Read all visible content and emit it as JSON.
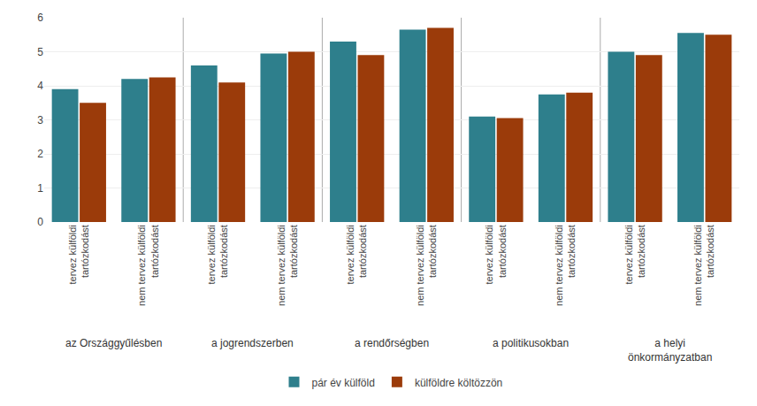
{
  "chart_data": {
    "type": "bar",
    "categories": [
      [
        "az Országgyűlésben",
        "tervez külföldi\ntartózkodást"
      ],
      [
        "az Országgyűlésben",
        "nem tervez külföldi\ntartózkodást"
      ],
      [
        "a jogrendszerben",
        "tervez külföldi\ntartózkodást"
      ],
      [
        "a jogrendszerben",
        "nem tervez külföldi\ntartózkodást"
      ],
      [
        "a rendőrségben",
        "tervez külföldi\ntartózkodást"
      ],
      [
        "a rendőrségben",
        "nem tervez külföldi\ntartózkodást"
      ],
      [
        "a politikusokban",
        "tervez külföldi\ntartózkodást"
      ],
      [
        "a politikusokban",
        "nem tervez külföldi\ntartózkodást"
      ],
      [
        "a helyi\nönkormányzatban",
        "tervez külföldi\ntartózkodást"
      ],
      [
        "a helyi\nönkormányzatban",
        "nem tervez külföldi\ntartózkodást"
      ]
    ],
    "series": [
      {
        "name": "pár év külföld",
        "color": "#2E7F8C",
        "values": [
          3.9,
          4.2,
          4.6,
          4.95,
          5.3,
          5.65,
          3.1,
          3.75,
          5.0,
          5.55
        ]
      },
      {
        "name": "külföldre költözzön",
        "color": "#9B3B0A",
        "values": [
          3.5,
          4.25,
          4.1,
          5.0,
          4.9,
          5.7,
          3.05,
          3.8,
          4.9,
          5.5
        ]
      }
    ],
    "ylim": [
      0,
      6
    ],
    "yticks": [
      0,
      1,
      2,
      3,
      4,
      5,
      6
    ],
    "grid": true,
    "legend": "bottom"
  }
}
